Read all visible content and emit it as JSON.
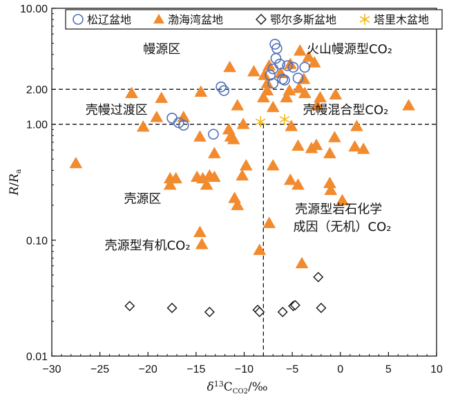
{
  "chart_data": {
    "type": "scatter",
    "title": "",
    "xlabel": "δ13CCO2/‰",
    "xlabel_parts": {
      "delta": "δ",
      "sup": "13",
      "main": "C",
      "sub": "CO2",
      "unit": "/‰"
    },
    "ylabel": "R/Ra",
    "ylabel_parts": {
      "r": "R",
      "slash": "/",
      "ra": "R",
      "ra_sub": "a"
    },
    "xlim": [
      -30,
      10
    ],
    "ylim": [
      0.01,
      10
    ],
    "yscale": "log",
    "x_ticks": [
      -30,
      -25,
      -20,
      -15,
      -10,
      -5,
      0,
      5,
      10
    ],
    "x_tick_labels": [
      "−30",
      "−25",
      "−20",
      "−15",
      "−10",
      "−5",
      "0",
      "5",
      "10"
    ],
    "y_ticks": [
      0.01,
      0.1,
      1,
      2,
      10
    ],
    "y_tick_labels": [
      "0.01",
      "0.10",
      "1.00",
      "2.00",
      "10.00"
    ],
    "grid": false,
    "legend_position": "top",
    "reference_lines": {
      "horizontal_dashed": [
        1,
        2
      ],
      "vertical_dashed": {
        "x": -8,
        "y_from": 0.01,
        "y_to": 1
      }
    },
    "region_labels": [
      {
        "text": "幔源区",
        "x": -20.5,
        "y": 4.1
      },
      {
        "text": "壳幔过渡区",
        "x": -26.5,
        "y": 1.22
      },
      {
        "text": "壳源区",
        "x": -22.5,
        "y": 0.21
      },
      {
        "text": "壳源型有机CO₂",
        "x": -24.5,
        "y": 0.083
      },
      {
        "text": "火山幔源型CO₂",
        "x": -3.5,
        "y": 4.1
      },
      {
        "text": "壳幔混合型CO₂",
        "x": -3.9,
        "y": 1.22
      },
      {
        "text": "壳源型岩石化学",
        "x": -4.7,
        "y": 0.17
      },
      {
        "text": "成因（无机）CO₂",
        "x": -4.9,
        "y": 0.12
      }
    ],
    "series": [
      {
        "name": "松辽盆地",
        "marker": "circle-open",
        "color": "#4f6fb8",
        "points": [
          [
            -6.8,
            4.9
          ],
          [
            -6.6,
            4.5
          ],
          [
            -6.7,
            3.7
          ],
          [
            -6.3,
            3.3
          ],
          [
            -7.0,
            3.0
          ],
          [
            -5.5,
            3.2
          ],
          [
            -4.9,
            3.1
          ],
          [
            -7.3,
            2.65
          ],
          [
            -6.0,
            2.45
          ],
          [
            -4.4,
            2.5
          ],
          [
            -3.7,
            3.1
          ],
          [
            -7.0,
            2.25
          ],
          [
            -5.8,
            2.4
          ],
          [
            -12.4,
            2.1
          ],
          [
            -12.1,
            1.95
          ],
          [
            -17.5,
            1.13
          ],
          [
            -16.8,
            1.03
          ],
          [
            -16.3,
            0.98
          ],
          [
            -13.2,
            0.82
          ]
        ]
      },
      {
        "name": "渤海湾盆地",
        "marker": "triangle-filled",
        "color": "#f28a2e",
        "points": [
          [
            -4.2,
            4.3
          ],
          [
            -3.3,
            3.8
          ],
          [
            -2.7,
            3.4
          ],
          [
            -5.2,
            3.3
          ],
          [
            -7.4,
            3.2
          ],
          [
            -11.5,
            3.1
          ],
          [
            -9.0,
            2.85
          ],
          [
            -7.9,
            2.65
          ],
          [
            -6.2,
            2.75
          ],
          [
            -3.8,
            2.45
          ],
          [
            -7.6,
            2.25
          ],
          [
            -4.3,
            2.05
          ],
          [
            -21.7,
            1.85
          ],
          [
            -18.6,
            1.68
          ],
          [
            -14.5,
            1.9
          ],
          [
            -7.6,
            1.95
          ],
          [
            -5.3,
            1.95
          ],
          [
            -3.7,
            1.85
          ],
          [
            -5.6,
            1.7
          ],
          [
            -8.0,
            1.7
          ],
          [
            -10.7,
            1.45
          ],
          [
            -7.0,
            1.4
          ],
          [
            -2.1,
            1.7
          ],
          [
            -0.5,
            1.8
          ],
          [
            7.1,
            1.45
          ],
          [
            -2.4,
            1.45
          ],
          [
            -19.1,
            1.15
          ],
          [
            -16.3,
            1.15
          ],
          [
            -20.5,
            0.95
          ],
          [
            -14.6,
            0.78
          ],
          [
            -11.6,
            0.9
          ],
          [
            -11.4,
            0.78
          ],
          [
            -10.1,
            1.0
          ],
          [
            -11.1,
            0.74
          ],
          [
            -5.1,
            0.96
          ],
          [
            1.7,
            0.96
          ],
          [
            -0.6,
            0.77
          ],
          [
            -4.4,
            0.65
          ],
          [
            -3.0,
            0.62
          ],
          [
            -2.5,
            0.66
          ],
          [
            1.5,
            0.64
          ],
          [
            2.4,
            0.61
          ],
          [
            -1.1,
            0.56
          ],
          [
            -27.5,
            0.46
          ],
          [
            -13.1,
            0.56
          ],
          [
            -9.8,
            0.44
          ],
          [
            -7.0,
            0.44
          ],
          [
            -17.7,
            0.34
          ],
          [
            -17.1,
            0.34
          ],
          [
            -17.7,
            0.3
          ],
          [
            -14.9,
            0.35
          ],
          [
            -14.3,
            0.34
          ],
          [
            -13.6,
            0.36
          ],
          [
            -13.1,
            0.35
          ],
          [
            -13.9,
            0.3
          ],
          [
            -10.2,
            0.36
          ],
          [
            -5.2,
            0.33
          ],
          [
            -4.4,
            0.3
          ],
          [
            -1.1,
            0.31
          ],
          [
            -1.0,
            0.27
          ],
          [
            -11.0,
            0.23
          ],
          [
            -10.7,
            0.2
          ],
          [
            0.2,
            0.22
          ],
          [
            -7.4,
            0.14
          ],
          [
            -14.6,
            0.117
          ],
          [
            -14.4,
            0.092
          ],
          [
            -8.4,
            0.082
          ],
          [
            -4.0,
            0.063
          ]
        ]
      },
      {
        "name": "鄂尔多斯盆地",
        "marker": "diamond-open",
        "color": "#111111",
        "points": [
          [
            -21.9,
            0.027
          ],
          [
            -17.5,
            0.026
          ],
          [
            -13.6,
            0.024
          ],
          [
            -8.6,
            0.025
          ],
          [
            -8.4,
            0.024
          ],
          [
            -6.0,
            0.024
          ],
          [
            -4.9,
            0.027
          ],
          [
            -4.7,
            0.0275
          ],
          [
            -2.3,
            0.048
          ],
          [
            -2.0,
            0.026
          ]
        ]
      },
      {
        "name": "塔里木盆地",
        "marker": "star",
        "color": "#f2b81a",
        "points": [
          [
            -8.3,
            1.05
          ],
          [
            -5.8,
            1.1
          ]
        ]
      }
    ]
  }
}
